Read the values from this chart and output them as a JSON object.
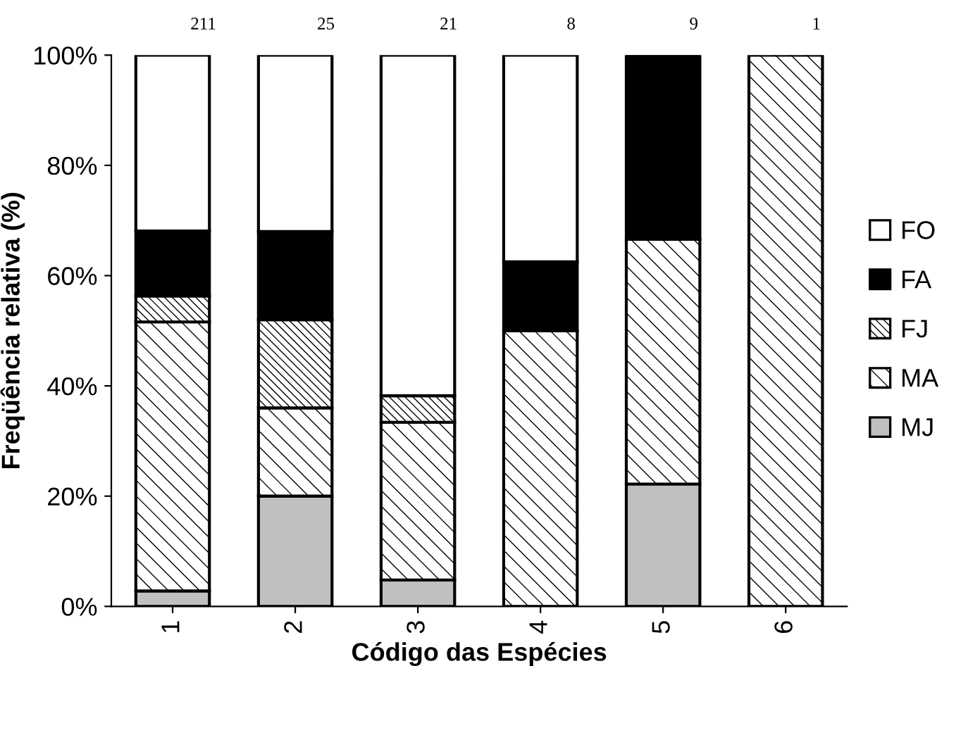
{
  "chart_data": {
    "type": "bar",
    "stacked": true,
    "xlabel": "Código das Espécies",
    "ylabel": "Freqüência relativa (%)",
    "categories": [
      "1",
      "2",
      "3",
      "4",
      "5",
      "6"
    ],
    "series": [
      {
        "name": "MJ",
        "color": "#c0c0c0",
        "values": [
          2.8,
          20,
          4.8,
          0,
          22.2,
          0
        ]
      },
      {
        "name": "MA",
        "color": "#000000",
        "values": [
          48.8,
          16,
          28.6,
          50,
          44.4,
          100
        ]
      },
      {
        "name": "FJ",
        "color": "#000000",
        "values": [
          4.7,
          16,
          4.8,
          0,
          0,
          0
        ]
      },
      {
        "name": "FA",
        "color": "#000000",
        "values": [
          11.8,
          16,
          0,
          12.5,
          33.4,
          0
        ]
      },
      {
        "name": "FO",
        "color": "#ffffff",
        "values": [
          31.9,
          32,
          61.8,
          37.5,
          0,
          0
        ]
      }
    ],
    "ylim": [
      0,
      100
    ],
    "yticks": [
      {
        "value": 0,
        "label": "0%"
      },
      {
        "value": 20,
        "label": "20%"
      },
      {
        "value": 40,
        "label": "40%"
      },
      {
        "value": 60,
        "label": "60%"
      },
      {
        "value": 80,
        "label": "80%"
      },
      {
        "value": 100,
        "label": "100%"
      }
    ],
    "annotations": [
      "211",
      "25",
      "21",
      "8",
      "9",
      "1"
    ],
    "legend": "right",
    "grid": false
  }
}
